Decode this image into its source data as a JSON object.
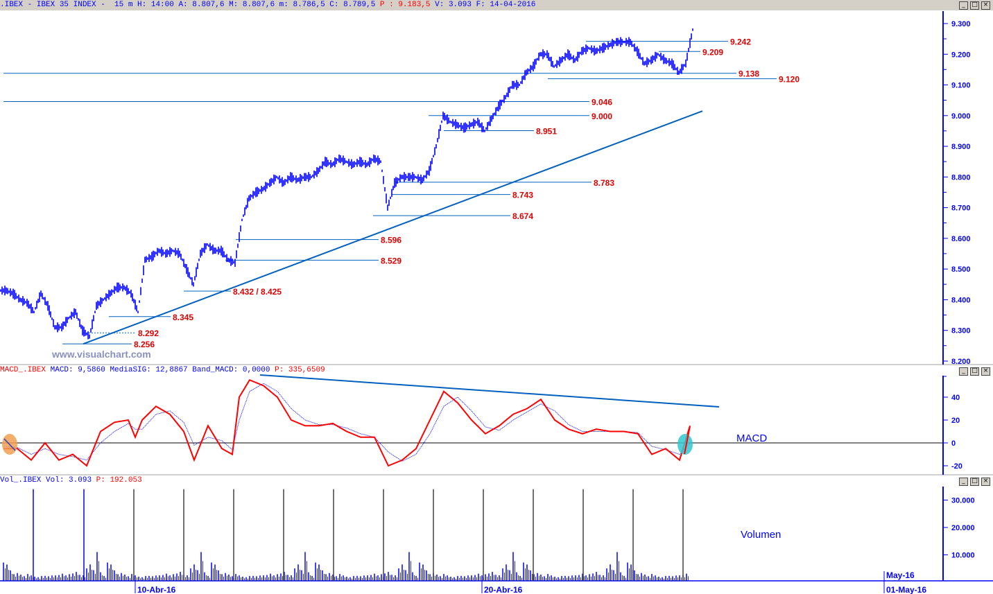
{
  "header": {
    "symbol": ".IBEX - IBEX 35 INDEX -  15 m",
    "ohlc": "H: 14:00 A: 8.807,6 M: 8.807,6 m: 8.786,5 C: 8.789,5",
    "p": "P : 9.183,5",
    "rest": "V: 3.093 F: 14-04-2016"
  },
  "macd_header": {
    "name": "MACD_.IBEX",
    "values": "MACD: 9,5860 MediaSIG: 12,8867 Band_MACD: 0,0000",
    "p": "P: 335,6509"
  },
  "vol_header": {
    "name": "Vol_.IBEX",
    "values": "Vol: 3.093",
    "p": "P: 192.053"
  },
  "window_buttons": [
    "_",
    "□",
    "×"
  ],
  "watermark": "www.visualchart.com",
  "colors": {
    "price": "#0000ff",
    "level": "#0060c0",
    "label": "#e00000",
    "macd": "#ff0000",
    "signal": "#0000ff",
    "volume": "#0000ff",
    "volume_spike": "#404040"
  },
  "chart_data": [
    {
      "type": "line",
      "title": "IBEX 35 INDEX 15 m",
      "ylim": [
        8.2,
        9.32
      ],
      "yticks": [
        "9.300",
        "9.200",
        "9.100",
        "9.000",
        "8.900",
        "8.800",
        "8.700",
        "8.600",
        "8.500",
        "8.400",
        "8.300",
        "8.200"
      ],
      "ytick_values": [
        9.3,
        9.2,
        9.1,
        9.0,
        8.9,
        8.8,
        8.7,
        8.6,
        8.5,
        8.4,
        8.3,
        8.2
      ],
      "x_index_range": [
        0,
        135
      ],
      "xticks": [
        {
          "index": 19,
          "label": "10-Abr-16"
        },
        {
          "index": 69,
          "label": "20-Abr-16"
        },
        {
          "index": 127,
          "label": "May-16"
        },
        {
          "index": 127,
          "label": "01-May-16"
        }
      ],
      "close": [
        8.43,
        8.42,
        8.4,
        8.39,
        8.36,
        8.42,
        8.38,
        8.31,
        8.31,
        8.34,
        8.36,
        8.3,
        8.28,
        8.38,
        8.4,
        8.42,
        8.44,
        8.44,
        8.42,
        8.36,
        8.53,
        8.54,
        8.56,
        8.55,
        8.56,
        8.55,
        8.5,
        8.45,
        8.55,
        8.58,
        8.56,
        8.56,
        8.53,
        8.52,
        8.66,
        8.73,
        8.75,
        8.76,
        8.78,
        8.8,
        8.78,
        8.8,
        8.79,
        8.8,
        8.8,
        8.82,
        8.85,
        8.84,
        8.86,
        8.85,
        8.84,
        8.85,
        8.84,
        8.86,
        8.85,
        8.7,
        8.78,
        8.8,
        8.8,
        8.8,
        8.79,
        8.82,
        8.9,
        9.0,
        8.98,
        8.97,
        8.96,
        8.97,
        8.98,
        8.95,
        8.99,
        9.03,
        9.06,
        9.1,
        9.1,
        9.14,
        9.16,
        9.2,
        9.2,
        9.16,
        9.18,
        9.2,
        9.18,
        9.21,
        9.22,
        9.21,
        9.22,
        9.23,
        9.24,
        9.24,
        9.24,
        9.21,
        9.17,
        9.18,
        9.2,
        9.18,
        9.17,
        9.14,
        9.17,
        9.28
      ],
      "levels": [
        {
          "price": 9.242,
          "from": 84,
          "to": 104.5,
          "label": "9.242"
        },
        {
          "price": 9.209,
          "from": 94.5,
          "to": 100.5,
          "label": "9.209"
        },
        {
          "price": 9.138,
          "from": 0,
          "to": 105.7,
          "label": "9.138"
        },
        {
          "price": 9.12,
          "from": 78.5,
          "to": 111.5,
          "label": "9.120"
        },
        {
          "price": 9.046,
          "from": 0,
          "to": 84.5,
          "label": "9.046"
        },
        {
          "price": 9.0,
          "from": 61.3,
          "to": 84.5,
          "label": "9.000"
        },
        {
          "price": 8.951,
          "from": 63.5,
          "to": 76.5,
          "label": "8.951"
        },
        {
          "price": 8.783,
          "from": 56.5,
          "to": 84.8,
          "label": "8.783"
        },
        {
          "price": 8.743,
          "from": 56,
          "to": 73.1,
          "label": "8.743"
        },
        {
          "price": 8.674,
          "from": 53.3,
          "to": 73.1,
          "label": "8.674"
        },
        {
          "price": 8.596,
          "from": 33.5,
          "to": 54.1,
          "label": "8.596"
        },
        {
          "price": 8.529,
          "from": 32,
          "to": 54.1,
          "label": "8.529"
        },
        {
          "price": 8.428,
          "from": 26,
          "to": 32.8,
          "label": "8.432 / 8.425"
        },
        {
          "price": 8.345,
          "from": 15.2,
          "to": 24.1,
          "label": "8.345"
        },
        {
          "price": 8.292,
          "from": 11.5,
          "to": 19.1,
          "label": "8.292",
          "dashed": true
        },
        {
          "price": 8.256,
          "from": 8.5,
          "to": 18.5,
          "label": "8.256"
        }
      ],
      "trendline": {
        "from": [
          11.5,
          8.256
        ],
        "to": [
          100.8,
          9.015
        ]
      }
    },
    {
      "type": "line",
      "title": "MACD",
      "ylim": [
        -30,
        60
      ],
      "yticks": [
        "40",
        "20",
        "0",
        "-20"
      ],
      "ytick_values": [
        40,
        20,
        0,
        -20
      ],
      "x": [
        0,
        2,
        4,
        6,
        8,
        10,
        12,
        14,
        16,
        18,
        19,
        20,
        22,
        24,
        26,
        27.5,
        29.5,
        31.5,
        33,
        34,
        35.5,
        37.5,
        39.5,
        41.5,
        43.5,
        45.5,
        47.5,
        49.5,
        51.5,
        53.5,
        55.5,
        57.5,
        59.5,
        61.5,
        63.5,
        65.5,
        67.5,
        69.5,
        71.5,
        73.5,
        75.5,
        77.5,
        79.5,
        81.5,
        83.5,
        85.5,
        87.5,
        89.5,
        91.5,
        93.5,
        95.5,
        97.5,
        99
      ],
      "macd": [
        -5,
        -5,
        -15,
        0,
        -15,
        -10,
        -20,
        10,
        18,
        20,
        5,
        20,
        32,
        25,
        10,
        -15,
        15,
        -5,
        -10,
        40,
        55,
        50,
        40,
        20,
        15,
        15,
        17,
        10,
        5,
        5,
        -20,
        -15,
        -5,
        20,
        45,
        35,
        20,
        8,
        15,
        25,
        30,
        38,
        20,
        12,
        8,
        12,
        10,
        10,
        8,
        -10,
        -5,
        -15,
        15
      ],
      "signal": [
        -3,
        -4,
        -10,
        -5,
        -10,
        -12,
        -15,
        0,
        10,
        17,
        12,
        12,
        25,
        28,
        18,
        -2,
        5,
        2,
        -6,
        20,
        45,
        52,
        45,
        30,
        20,
        16,
        16,
        13,
        8,
        5,
        -8,
        -16,
        -10,
        8,
        32,
        40,
        28,
        14,
        11,
        20,
        27,
        34,
        28,
        16,
        10,
        10,
        10,
        10,
        9,
        -3,
        -6,
        -10,
        0
      ],
      "trendline": {
        "from": [
          37,
          59.4
        ],
        "to": [
          103.2,
          31.5
        ]
      },
      "label": "MACD",
      "markers": [
        {
          "index": 0.9,
          "color": "#f0a050"
        },
        {
          "index": 98.3,
          "color": "#30c8d0"
        }
      ]
    },
    {
      "type": "bar",
      "title": "Volumen",
      "ylim": [
        0,
        35000
      ],
      "yticks": [
        "30.000",
        "20.000",
        "10.000"
      ],
      "ytick_values": [
        30000,
        20000,
        10000
      ],
      "spike_indices": [
        4.3,
        11.6,
        18.8,
        26,
        33.2,
        40.4,
        47.6,
        54.8,
        62,
        69.2,
        76.4,
        83.6,
        90.8,
        98
      ],
      "spike_values": [
        34000,
        34000,
        34000,
        34000,
        34000,
        34000,
        34000,
        34000,
        34000,
        34000,
        34000,
        34000,
        34000,
        34000
      ],
      "typical_session_profile": [
        9000,
        6000,
        4500,
        3500,
        3000,
        2800,
        2500,
        2600,
        2400,
        2200,
        2300,
        2100,
        2400,
        2600,
        2200,
        2500,
        3000,
        2700,
        2400,
        3200,
        4000,
        3500,
        2800,
        3000,
        4500,
        6500,
        5000,
        9500,
        3500,
        2500
      ]
    }
  ]
}
